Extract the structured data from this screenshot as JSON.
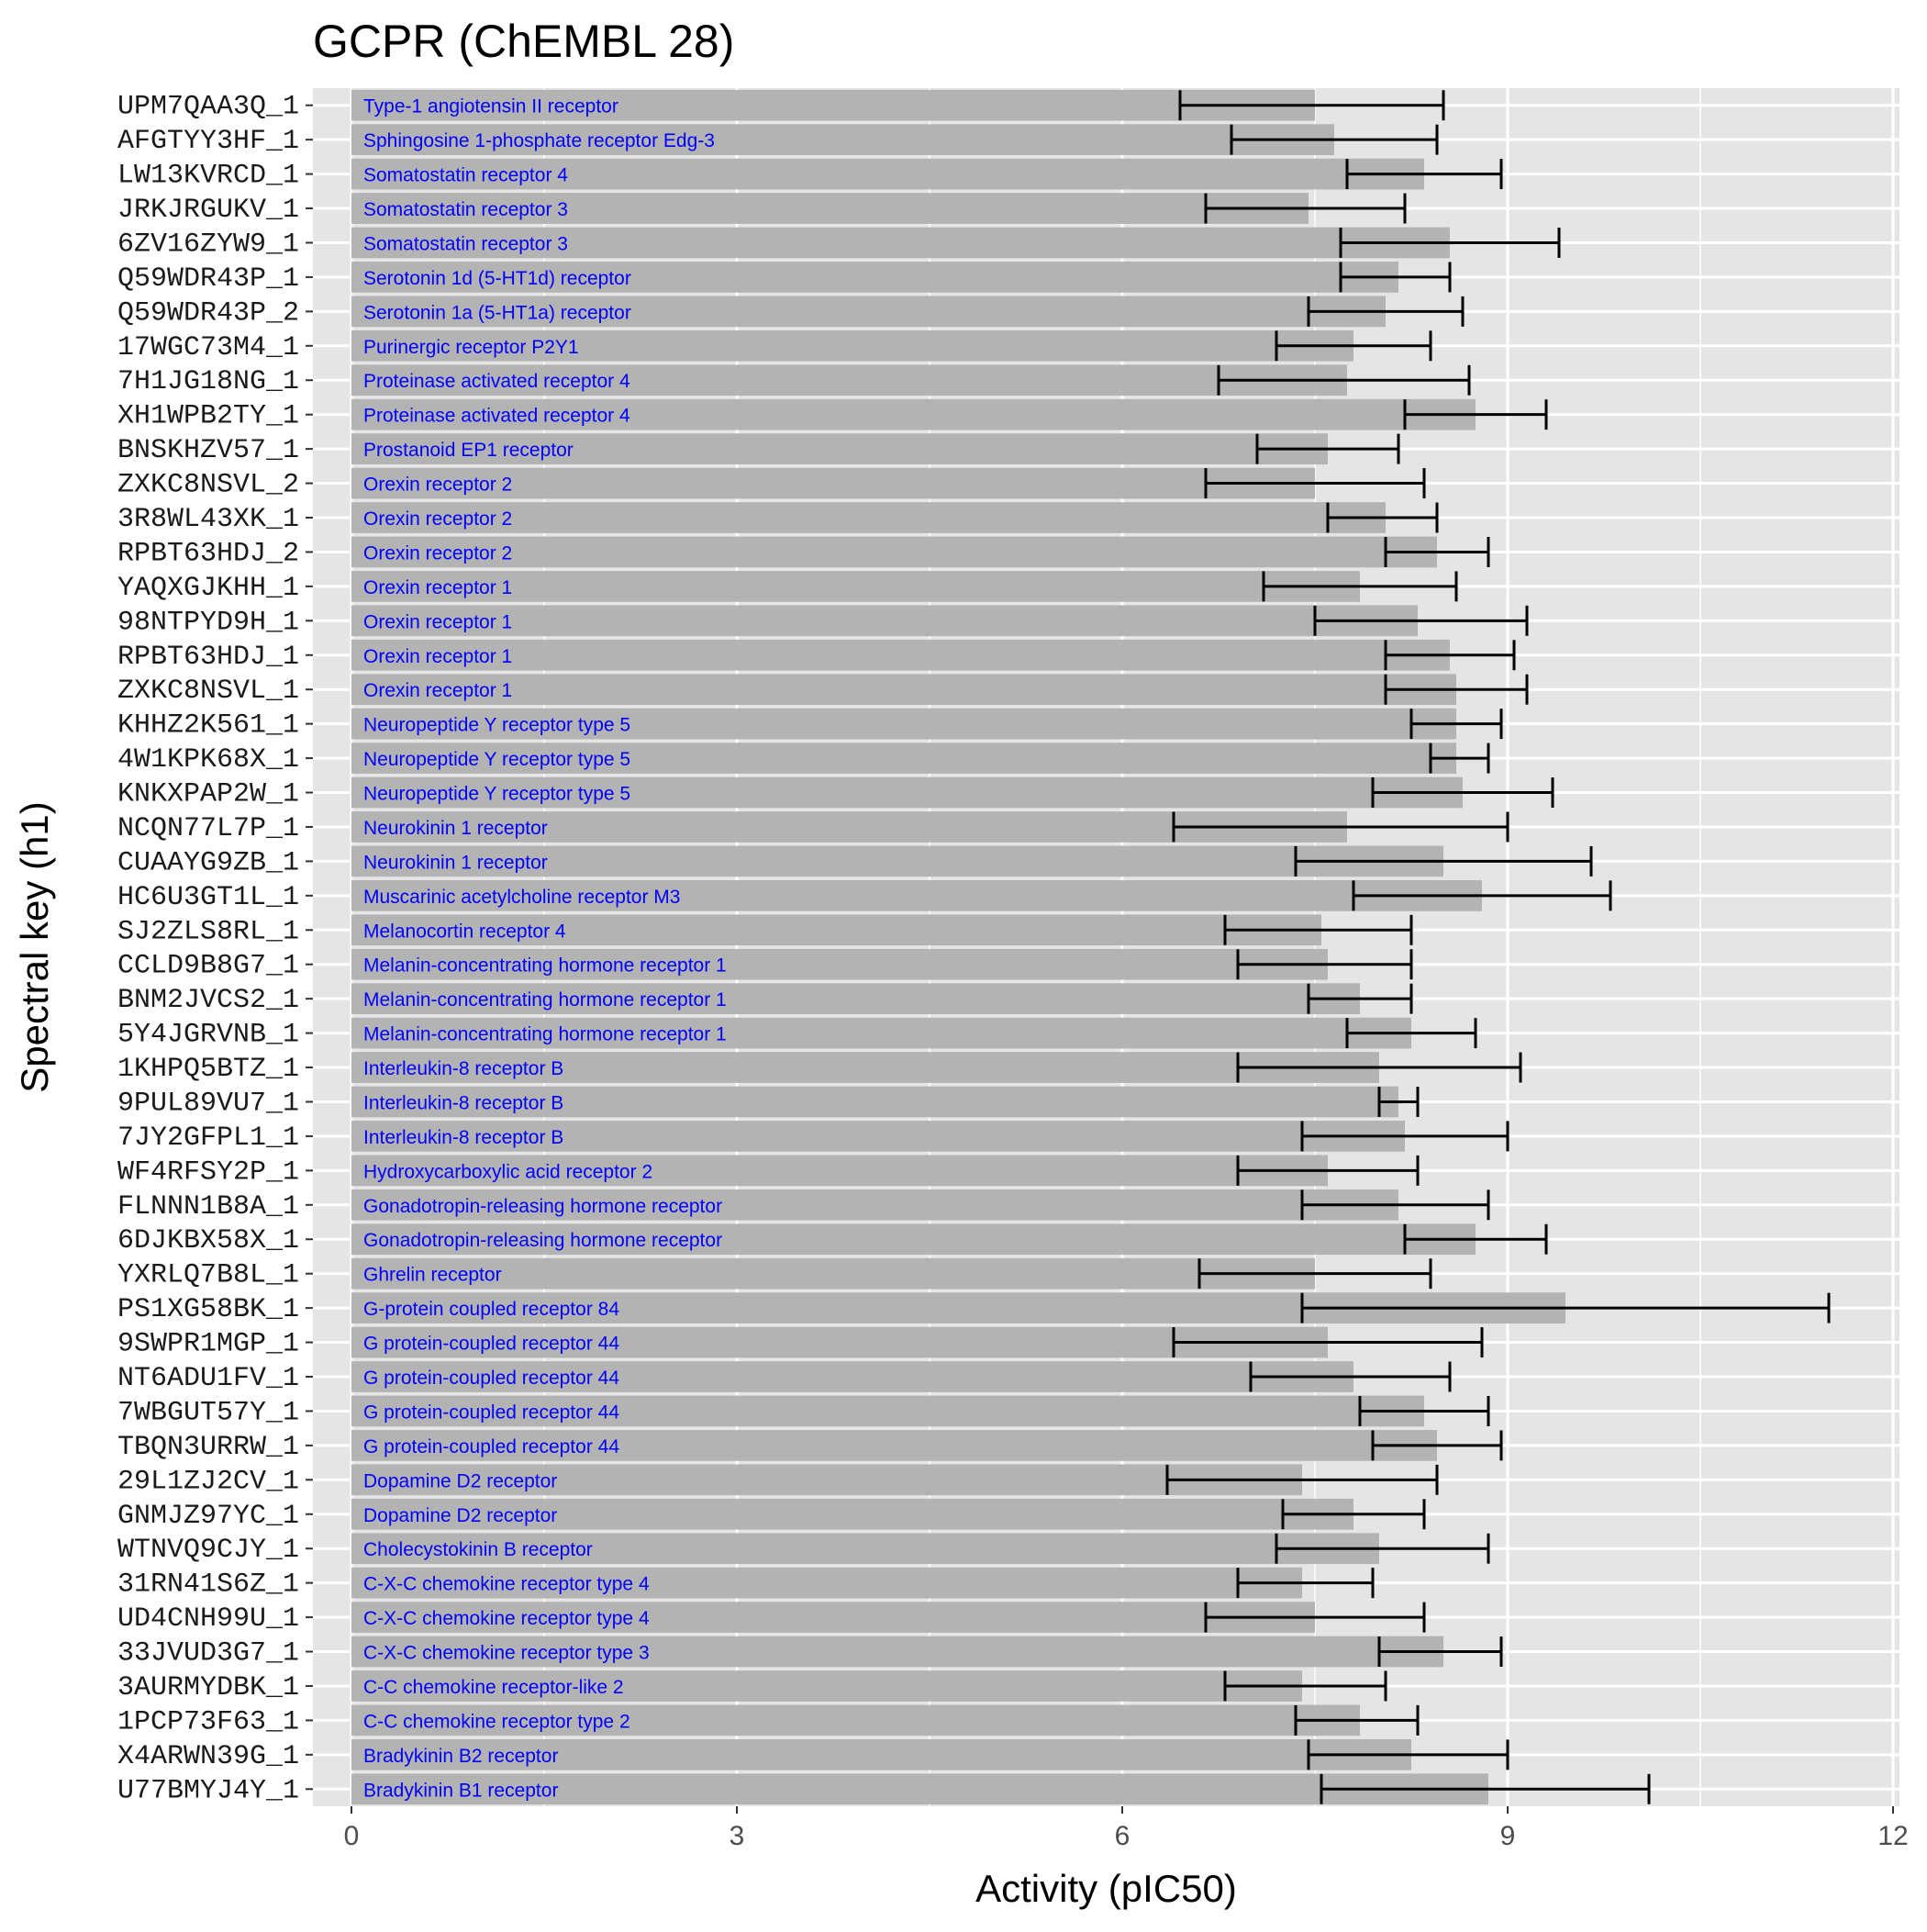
{
  "chart_data": {
    "type": "bar",
    "orientation": "horizontal",
    "title": "GCPR (ChEMBL 28)",
    "xlabel": "Activity (pIC50)",
    "ylabel": "Spectral key (h1)",
    "xlim": [
      -0.3,
      12.05
    ],
    "xticks": [
      0,
      3,
      6,
      9,
      12
    ],
    "grid": true,
    "colors": {
      "panel": "#e5e5e5",
      "grid": "#ffffff",
      "bar": "#b3b3b3",
      "errorbar": "#000000",
      "bar_label": "#0000ff"
    },
    "rows": [
      {
        "key": "UPM7QAA3Q_1",
        "target": "Type-1 angiotensin II receptor",
        "value": 7.5,
        "err_low": 6.45,
        "err_high": 8.5
      },
      {
        "key": "AFGTYY3HF_1",
        "target": "Sphingosine 1-phosphate receptor Edg-3",
        "value": 7.65,
        "err_low": 6.85,
        "err_high": 8.45
      },
      {
        "key": "LW13KVRCD_1",
        "target": "Somatostatin receptor 4",
        "value": 8.35,
        "err_low": 7.75,
        "err_high": 8.95
      },
      {
        "key": "JRKJRGUKV_1",
        "target": "Somatostatin receptor 3",
        "value": 7.45,
        "err_low": 6.65,
        "err_high": 8.2
      },
      {
        "key": "6ZV16ZYW9_1",
        "target": "Somatostatin receptor 3",
        "value": 8.55,
        "err_low": 7.7,
        "err_high": 9.4
      },
      {
        "key": "Q59WDR43P_1",
        "target": "Serotonin 1d (5-HT1d) receptor",
        "value": 8.15,
        "err_low": 7.7,
        "err_high": 8.55
      },
      {
        "key": "Q59WDR43P_2",
        "target": "Serotonin 1a (5-HT1a) receptor",
        "value": 8.05,
        "err_low": 7.45,
        "err_high": 8.65
      },
      {
        "key": "17WGC73M4_1",
        "target": "Purinergic receptor P2Y1",
        "value": 7.8,
        "err_low": 7.2,
        "err_high": 8.4
      },
      {
        "key": "7H1JG18NG_1",
        "target": "Proteinase activated receptor 4",
        "value": 7.75,
        "err_low": 6.75,
        "err_high": 8.7
      },
      {
        "key": "XH1WPB2TY_1",
        "target": "Proteinase activated receptor 4",
        "value": 8.75,
        "err_low": 8.2,
        "err_high": 9.3
      },
      {
        "key": "BNSKHZV57_1",
        "target": "Prostanoid EP1 receptor",
        "value": 7.6,
        "err_low": 7.05,
        "err_high": 8.15
      },
      {
        "key": "ZXKC8NSVL_2",
        "target": "Orexin receptor 2",
        "value": 7.5,
        "err_low": 6.65,
        "err_high": 8.35
      },
      {
        "key": "3R8WL43XK_1",
        "target": "Orexin receptor 2",
        "value": 8.05,
        "err_low": 7.6,
        "err_high": 8.45
      },
      {
        "key": "RPBT63HDJ_2",
        "target": "Orexin receptor 2",
        "value": 8.45,
        "err_low": 8.05,
        "err_high": 8.85
      },
      {
        "key": "YAQXGJKHH_1",
        "target": "Orexin receptor 1",
        "value": 7.85,
        "err_low": 7.1,
        "err_high": 8.6
      },
      {
        "key": "98NTPYD9H_1",
        "target": "Orexin receptor 1",
        "value": 8.3,
        "err_low": 7.5,
        "err_high": 9.15
      },
      {
        "key": "RPBT63HDJ_1",
        "target": "Orexin receptor 1",
        "value": 8.55,
        "err_low": 8.05,
        "err_high": 9.05
      },
      {
        "key": "ZXKC8NSVL_1",
        "target": "Orexin receptor 1",
        "value": 8.6,
        "err_low": 8.05,
        "err_high": 9.15
      },
      {
        "key": "KHHZ2K561_1",
        "target": "Neuropeptide Y receptor type 5",
        "value": 8.6,
        "err_low": 8.25,
        "err_high": 8.95
      },
      {
        "key": "4W1KPK68X_1",
        "target": "Neuropeptide Y receptor type 5",
        "value": 8.6,
        "err_low": 8.4,
        "err_high": 8.85
      },
      {
        "key": "KNKXPAP2W_1",
        "target": "Neuropeptide Y receptor type 5",
        "value": 8.65,
        "err_low": 7.95,
        "err_high": 9.35
      },
      {
        "key": "NCQN77L7P_1",
        "target": "Neurokinin 1 receptor",
        "value": 7.75,
        "err_low": 6.4,
        "err_high": 9.0
      },
      {
        "key": "CUAAYG9ZB_1",
        "target": "Neurokinin 1 receptor",
        "value": 8.5,
        "err_low": 7.35,
        "err_high": 9.65
      },
      {
        "key": "HC6U3GT1L_1",
        "target": "Muscarinic acetylcholine receptor M3",
        "value": 8.8,
        "err_low": 7.8,
        "err_high": 9.8
      },
      {
        "key": "SJ2ZLS8RL_1",
        "target": "Melanocortin receptor 4",
        "value": 7.55,
        "err_low": 6.8,
        "err_high": 8.25
      },
      {
        "key": "CCLD9B8G7_1",
        "target": "Melanin-concentrating hormone receptor 1",
        "value": 7.6,
        "err_low": 6.9,
        "err_high": 8.25
      },
      {
        "key": "BNM2JVCS2_1",
        "target": "Melanin-concentrating hormone receptor 1",
        "value": 7.85,
        "err_low": 7.45,
        "err_high": 8.25
      },
      {
        "key": "5Y4JGRVNB_1",
        "target": "Melanin-concentrating hormone receptor 1",
        "value": 8.25,
        "err_low": 7.75,
        "err_high": 8.75
      },
      {
        "key": "1KHPQ5BTZ_1",
        "target": "Interleukin-8 receptor B",
        "value": 8.0,
        "err_low": 6.9,
        "err_high": 9.1
      },
      {
        "key": "9PUL89VU7_1",
        "target": "Interleukin-8 receptor B",
        "value": 8.15,
        "err_low": 8.0,
        "err_high": 8.3
      },
      {
        "key": "7JY2GFPL1_1",
        "target": "Interleukin-8 receptor B",
        "value": 8.2,
        "err_low": 7.4,
        "err_high": 9.0
      },
      {
        "key": "WF4RFSY2P_1",
        "target": "Hydroxycarboxylic acid receptor 2",
        "value": 7.6,
        "err_low": 6.9,
        "err_high": 8.3
      },
      {
        "key": "FLNNN1B8A_1",
        "target": "Gonadotropin-releasing hormone receptor",
        "value": 8.15,
        "err_low": 7.4,
        "err_high": 8.85
      },
      {
        "key": "6DJKBX58X_1",
        "target": "Gonadotropin-releasing hormone receptor",
        "value": 8.75,
        "err_low": 8.2,
        "err_high": 9.3
      },
      {
        "key": "YXRLQ7B8L_1",
        "target": "Ghrelin receptor",
        "value": 7.5,
        "err_low": 6.6,
        "err_high": 8.4
      },
      {
        "key": "PS1XG58BK_1",
        "target": "G-protein coupled receptor 84",
        "value": 9.45,
        "err_low": 7.4,
        "err_high": 11.5
      },
      {
        "key": "9SWPR1MGP_1",
        "target": "G protein-coupled receptor 44",
        "value": 7.6,
        "err_low": 6.4,
        "err_high": 8.8
      },
      {
        "key": "NT6ADU1FV_1",
        "target": "G protein-coupled receptor 44",
        "value": 7.8,
        "err_low": 7.0,
        "err_high": 8.55
      },
      {
        "key": "7WBGUT57Y_1",
        "target": "G protein-coupled receptor 44",
        "value": 8.35,
        "err_low": 7.85,
        "err_high": 8.85
      },
      {
        "key": "TBQN3URRW_1",
        "target": "G protein-coupled receptor 44",
        "value": 8.45,
        "err_low": 7.95,
        "err_high": 8.95
      },
      {
        "key": "29L1ZJ2CV_1",
        "target": "Dopamine D2 receptor",
        "value": 7.4,
        "err_low": 6.35,
        "err_high": 8.45
      },
      {
        "key": "GNMJZ97YC_1",
        "target": "Dopamine D2 receptor",
        "value": 7.8,
        "err_low": 7.25,
        "err_high": 8.35
      },
      {
        "key": "WTNVQ9CJY_1",
        "target": "Cholecystokinin B receptor",
        "value": 8.0,
        "err_low": 7.2,
        "err_high": 8.85
      },
      {
        "key": "31RN41S6Z_1",
        "target": "C-X-C chemokine receptor type 4",
        "value": 7.4,
        "err_low": 6.9,
        "err_high": 7.95
      },
      {
        "key": "UD4CNH99U_1",
        "target": "C-X-C chemokine receptor type 4",
        "value": 7.5,
        "err_low": 6.65,
        "err_high": 8.35
      },
      {
        "key": "33JVUD3G7_1",
        "target": "C-X-C chemokine receptor type 3",
        "value": 8.5,
        "err_low": 8.0,
        "err_high": 8.95
      },
      {
        "key": "3AURMYDBK_1",
        "target": "C-C chemokine receptor-like 2",
        "value": 7.4,
        "err_low": 6.8,
        "err_high": 8.05
      },
      {
        "key": "1PCP73F63_1",
        "target": "C-C chemokine receptor type 2",
        "value": 7.85,
        "err_low": 7.35,
        "err_high": 8.3
      },
      {
        "key": "X4ARWN39G_1",
        "target": "Bradykinin B2 receptor",
        "value": 8.25,
        "err_low": 7.45,
        "err_high": 9.0
      },
      {
        "key": "U77BMYJ4Y_1",
        "target": "Bradykinin B1 receptor",
        "value": 8.85,
        "err_low": 7.55,
        "err_high": 10.1
      }
    ]
  }
}
